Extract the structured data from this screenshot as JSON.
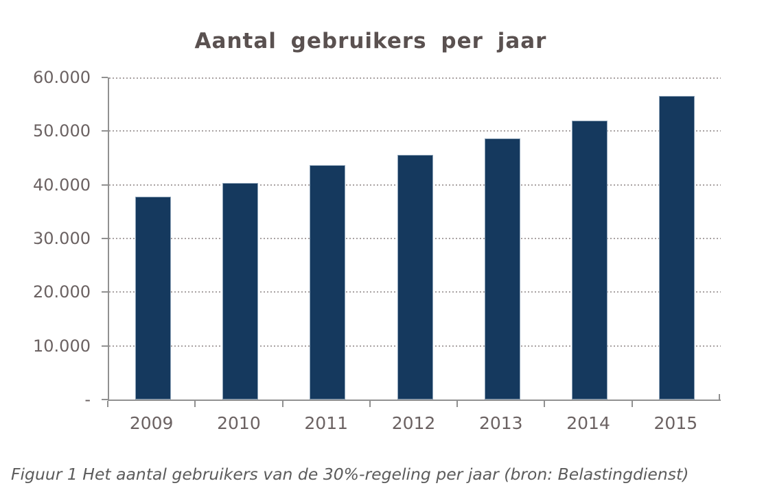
{
  "figure": {
    "caption": "Figuur 1 Het aantal gebruikers van de 30%-regeling per jaar (bron: Belastingdienst)"
  },
  "chart_data": {
    "type": "bar",
    "title": "Aantal gebruikers per jaar",
    "categories": [
      "2009",
      "2010",
      "2011",
      "2012",
      "2013",
      "2014",
      "2015"
    ],
    "values": [
      37800,
      40400,
      43600,
      45600,
      48700,
      51900,
      56500
    ],
    "xlabel": "",
    "ylabel": "",
    "ylim": [
      0,
      60000
    ],
    "ytick_interval": 10000,
    "ytick_labels_bottom_to_top": [
      "-",
      "10.000",
      "20.000",
      "30.000",
      "40.000",
      "50.000",
      "60.000"
    ],
    "grid": "horizontal-dotted",
    "legend_position": "none",
    "colors": {
      "bar_fill": "#15395e",
      "bar_border": "#8ea4b9",
      "axis": "#909090",
      "gridline": "#a8a1a1",
      "title_text": "#5a5150",
      "tick_label_text": "#6b6262",
      "caption_text": "#5b5b5b",
      "background": "#ffffff"
    }
  }
}
